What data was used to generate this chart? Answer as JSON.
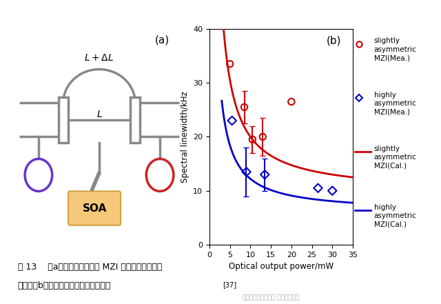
{
  "panel_b_xlabel": "Optical output power/mW",
  "panel_b_ylabel": "Spectral linewidth/kHz",
  "xlim": [
    0,
    35
  ],
  "ylim": [
    0,
    40
  ],
  "xticks": [
    0,
    5,
    10,
    15,
    20,
    25,
    30,
    35
  ],
  "yticks": [
    0,
    10,
    20,
    30,
    40
  ],
  "red_data_x": [
    5.0,
    8.5,
    10.5,
    13.0,
    20.0
  ],
  "red_data_y": [
    33.5,
    25.5,
    19.5,
    20.0,
    26.5
  ],
  "red_data_yerr": [
    0,
    3.0,
    2.5,
    3.5,
    0
  ],
  "blue_data_x": [
    5.5,
    9.0,
    13.5,
    26.5,
    30.0
  ],
  "blue_data_y": [
    23.0,
    13.5,
    13.0,
    10.5,
    10.0
  ],
  "blue_data_yerr": [
    0,
    4.5,
    3.0,
    0,
    0
  ],
  "red_color": "#cc0000",
  "blue_color": "#0000cc",
  "background_color": "#ffffff",
  "fig_label_a": "(a)",
  "fig_label_b": "(b)",
  "legend_entries": [
    "slightly\nasymmetric\nMZI(Mea.)",
    "highly\nasymmetric\nMZI(Mea.)",
    "slightly\nasymmetric\nMZI(Cal.)",
    "highly\nasymmetric\nMZI(Cal.)"
  ],
  "gray_color": "#888888",
  "purple_color": "#6633cc",
  "ring_red_color": "#cc2222",
  "soa_face": "#f5c87a",
  "soa_edge": "#d4a040"
}
